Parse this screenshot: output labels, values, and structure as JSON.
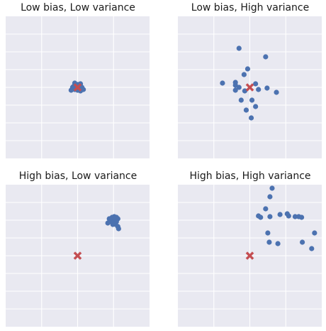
{
  "chart_data": [
    {
      "type": "scatter",
      "title": "Low bias, Low variance",
      "xlim": [
        -1,
        1
      ],
      "ylim": [
        -1,
        1
      ],
      "grid": true,
      "target": {
        "x": 0,
        "y": 0
      },
      "points": [
        {
          "x": -0.04,
          "y": 0.06
        },
        {
          "x": 0.0,
          "y": 0.04
        },
        {
          "x": 0.04,
          "y": 0.05
        },
        {
          "x": -0.06,
          "y": 0.01
        },
        {
          "x": -0.02,
          "y": 0.0
        },
        {
          "x": 0.02,
          "y": 0.01
        },
        {
          "x": 0.06,
          "y": 0.0
        },
        {
          "x": -0.09,
          "y": -0.04
        },
        {
          "x": -0.04,
          "y": -0.03
        },
        {
          "x": 0.0,
          "y": -0.04
        },
        {
          "x": 0.04,
          "y": -0.05
        },
        {
          "x": 0.08,
          "y": -0.03
        },
        {
          "x": -0.07,
          "y": 0.0
        },
        {
          "x": 0.02,
          "y": -0.02
        }
      ]
    },
    {
      "type": "scatter",
      "title": "Low bias, High variance",
      "xlim": [
        -1,
        1
      ],
      "ylim": [
        -1,
        1
      ],
      "grid": true,
      "target": {
        "x": 0,
        "y": 0
      },
      "points": [
        {
          "x": -0.15,
          "y": 0.55
        },
        {
          "x": 0.22,
          "y": 0.43
        },
        {
          "x": -0.03,
          "y": 0.26
        },
        {
          "x": -0.08,
          "y": 0.18
        },
        {
          "x": -0.38,
          "y": 0.06
        },
        {
          "x": -0.2,
          "y": 0.07
        },
        {
          "x": -0.2,
          "y": 0.03
        },
        {
          "x": -0.15,
          "y": 0.0
        },
        {
          "x": -0.2,
          "y": -0.04
        },
        {
          "x": 0.08,
          "y": 0.05
        },
        {
          "x": 0.24,
          "y": -0.01
        },
        {
          "x": 0.12,
          "y": -0.03
        },
        {
          "x": 0.37,
          "y": -0.07
        },
        {
          "x": -0.07,
          "y": -0.05
        },
        {
          "x": -0.12,
          "y": -0.18
        },
        {
          "x": 0.03,
          "y": -0.18
        },
        {
          "x": 0.08,
          "y": -0.27
        },
        {
          "x": -0.05,
          "y": -0.32
        },
        {
          "x": 0.02,
          "y": -0.43
        }
      ]
    },
    {
      "type": "scatter",
      "title": "High bias, Low variance",
      "xlim": [
        -1,
        1
      ],
      "ylim": [
        -1,
        1
      ],
      "grid": true,
      "target": {
        "x": 0,
        "y": 0
      },
      "points": [
        {
          "x": 0.48,
          "y": 0.54
        },
        {
          "x": 0.51,
          "y": 0.55
        },
        {
          "x": 0.54,
          "y": 0.54
        },
        {
          "x": 0.44,
          "y": 0.52
        },
        {
          "x": 0.48,
          "y": 0.51
        },
        {
          "x": 0.52,
          "y": 0.51
        },
        {
          "x": 0.56,
          "y": 0.52
        },
        {
          "x": 0.46,
          "y": 0.48
        },
        {
          "x": 0.5,
          "y": 0.47
        },
        {
          "x": 0.54,
          "y": 0.48
        },
        {
          "x": 0.42,
          "y": 0.46
        },
        {
          "x": 0.49,
          "y": 0.44
        },
        {
          "x": 0.53,
          "y": 0.44
        },
        {
          "x": 0.56,
          "y": 0.41
        },
        {
          "x": 0.57,
          "y": 0.38
        }
      ]
    },
    {
      "type": "scatter",
      "title": "High bias, High variance",
      "xlim": [
        -1,
        1
      ],
      "ylim": [
        -1,
        1
      ],
      "grid": true,
      "target": {
        "x": 0,
        "y": 0
      },
      "points": [
        {
          "x": 0.31,
          "y": 0.95
        },
        {
          "x": 0.28,
          "y": 0.83
        },
        {
          "x": 0.22,
          "y": 0.66
        },
        {
          "x": 0.12,
          "y": 0.56
        },
        {
          "x": 0.15,
          "y": 0.54
        },
        {
          "x": 0.28,
          "y": 0.55
        },
        {
          "x": 0.42,
          "y": 0.58
        },
        {
          "x": 0.52,
          "y": 0.59
        },
        {
          "x": 0.54,
          "y": 0.56
        },
        {
          "x": 0.63,
          "y": 0.55
        },
        {
          "x": 0.68,
          "y": 0.55
        },
        {
          "x": 0.72,
          "y": 0.54
        },
        {
          "x": 0.25,
          "y": 0.32
        },
        {
          "x": 0.9,
          "y": 0.32
        },
        {
          "x": 0.27,
          "y": 0.19
        },
        {
          "x": 0.39,
          "y": 0.17
        },
        {
          "x": 0.73,
          "y": 0.19
        },
        {
          "x": 0.86,
          "y": 0.1
        }
      ]
    }
  ]
}
